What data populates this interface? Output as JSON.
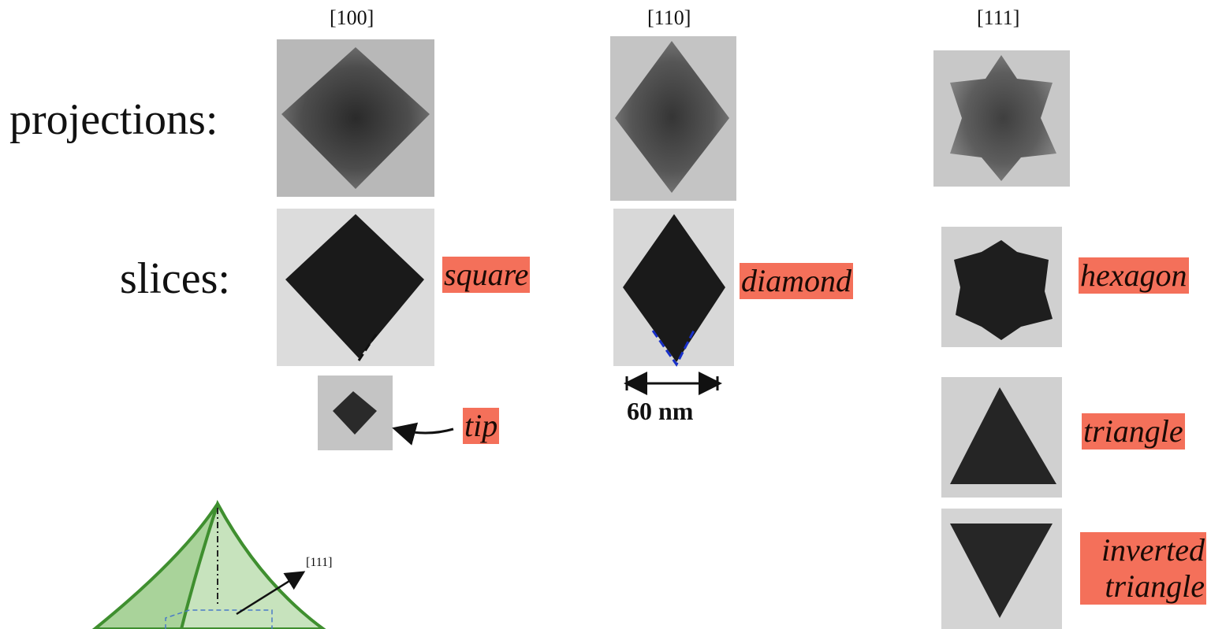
{
  "columns": [
    {
      "direction": "[100]"
    },
    {
      "direction": "[110]"
    },
    {
      "direction": "[111]"
    }
  ],
  "rows": {
    "projections": "projections:",
    "slices": "slices:"
  },
  "shapes": {
    "square": "square",
    "diamond": "diamond",
    "hexagon": "hexagon",
    "tip": "tip",
    "triangle": "triangle",
    "inverted_triangle": "inverted triangle"
  },
  "scale_bar": "60 nm",
  "diagram": {
    "axis_label": "[111]"
  }
}
